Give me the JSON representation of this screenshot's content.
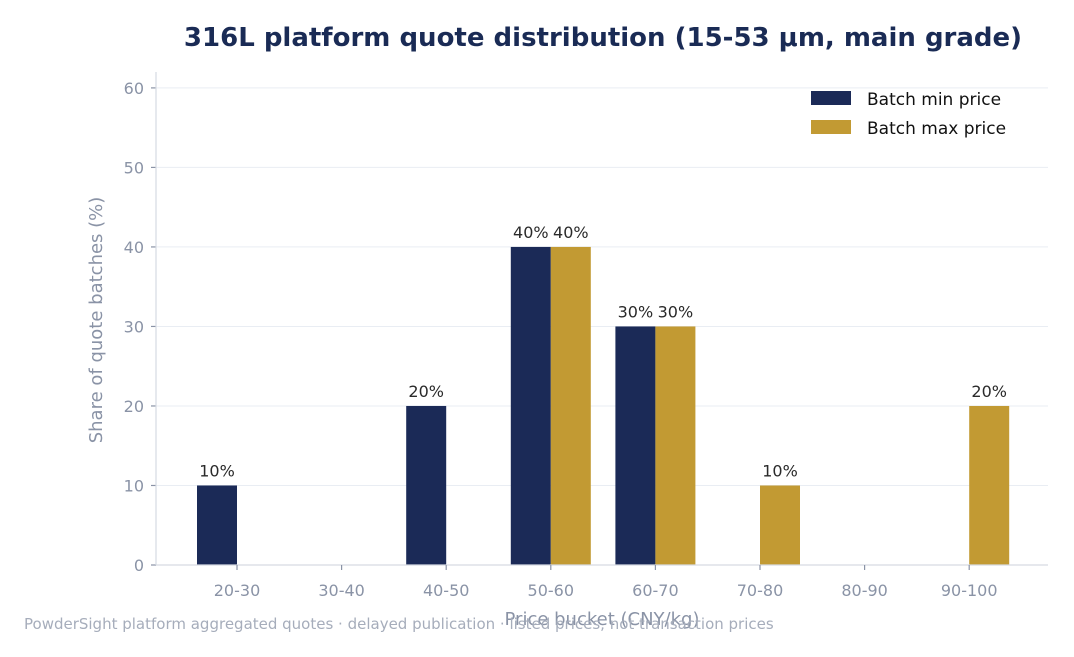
{
  "chart_data": {
    "type": "bar",
    "title": "316L platform quote distribution (15-53 μm, main grade)",
    "xlabel": "Price bucket (CNY/kg)",
    "ylabel": "Share of quote batches (%)",
    "categories": [
      "20-30",
      "30-40",
      "40-50",
      "50-60",
      "60-70",
      "70-80",
      "80-90",
      "90-100"
    ],
    "series": [
      {
        "name": "Batch min price",
        "color": "#1b2a57",
        "values": [
          10,
          0,
          20,
          40,
          30,
          0,
          0,
          0
        ]
      },
      {
        "name": "Batch max price",
        "color": "#c29a33",
        "values": [
          0,
          0,
          0,
          40,
          30,
          10,
          0,
          20
        ]
      }
    ],
    "ylim": [
      0,
      62
    ],
    "yticks": [
      0,
      10,
      20,
      30,
      40,
      50,
      60
    ],
    "grid": true,
    "legend_position": "top-right",
    "data_label_suffix": "%"
  },
  "footnote": "PowderSight platform aggregated quotes · delayed publication · listed prices, not transaction prices"
}
